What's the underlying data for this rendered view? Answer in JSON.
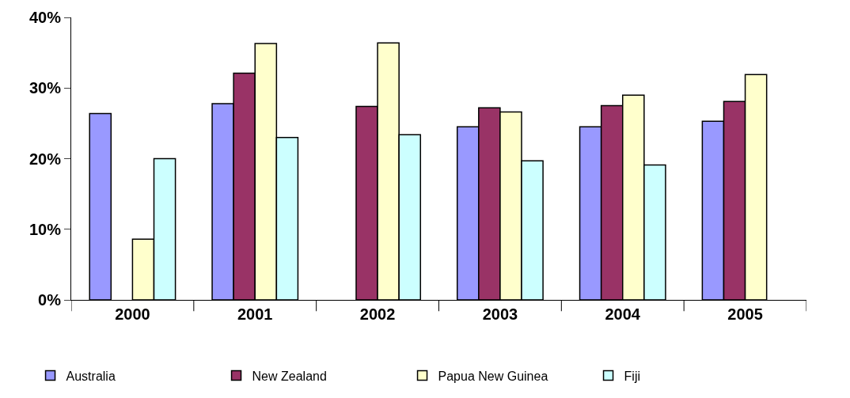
{
  "chart_data": {
    "type": "bar",
    "categories": [
      "2000",
      "2001",
      "2002",
      "2003",
      "2004",
      "2005"
    ],
    "series": [
      {
        "name": "Australia",
        "color": "#9999ff",
        "values": [
          26.4,
          27.8,
          null,
          24.5,
          24.5,
          25.3
        ]
      },
      {
        "name": "New Zealand",
        "color": "#993366",
        "values": [
          null,
          32.1,
          27.4,
          27.2,
          27.5,
          28.1
        ]
      },
      {
        "name": "Papua New Guinea",
        "color": "#ffffcc",
        "values": [
          8.6,
          36.3,
          36.4,
          26.6,
          29.0,
          31.9
        ]
      },
      {
        "name": "Fiji",
        "color": "#ccffff",
        "values": [
          20.0,
          23.0,
          23.4,
          19.7,
          19.1,
          null
        ]
      }
    ],
    "ylim": [
      0,
      40
    ],
    "yticks": [
      {
        "value": 0,
        "label": "0%"
      },
      {
        "value": 10,
        "label": "10%"
      },
      {
        "value": 20,
        "label": "20%"
      },
      {
        "value": 30,
        "label": "30%"
      },
      {
        "value": 40,
        "label": "40%"
      }
    ],
    "legend": "bottom"
  }
}
